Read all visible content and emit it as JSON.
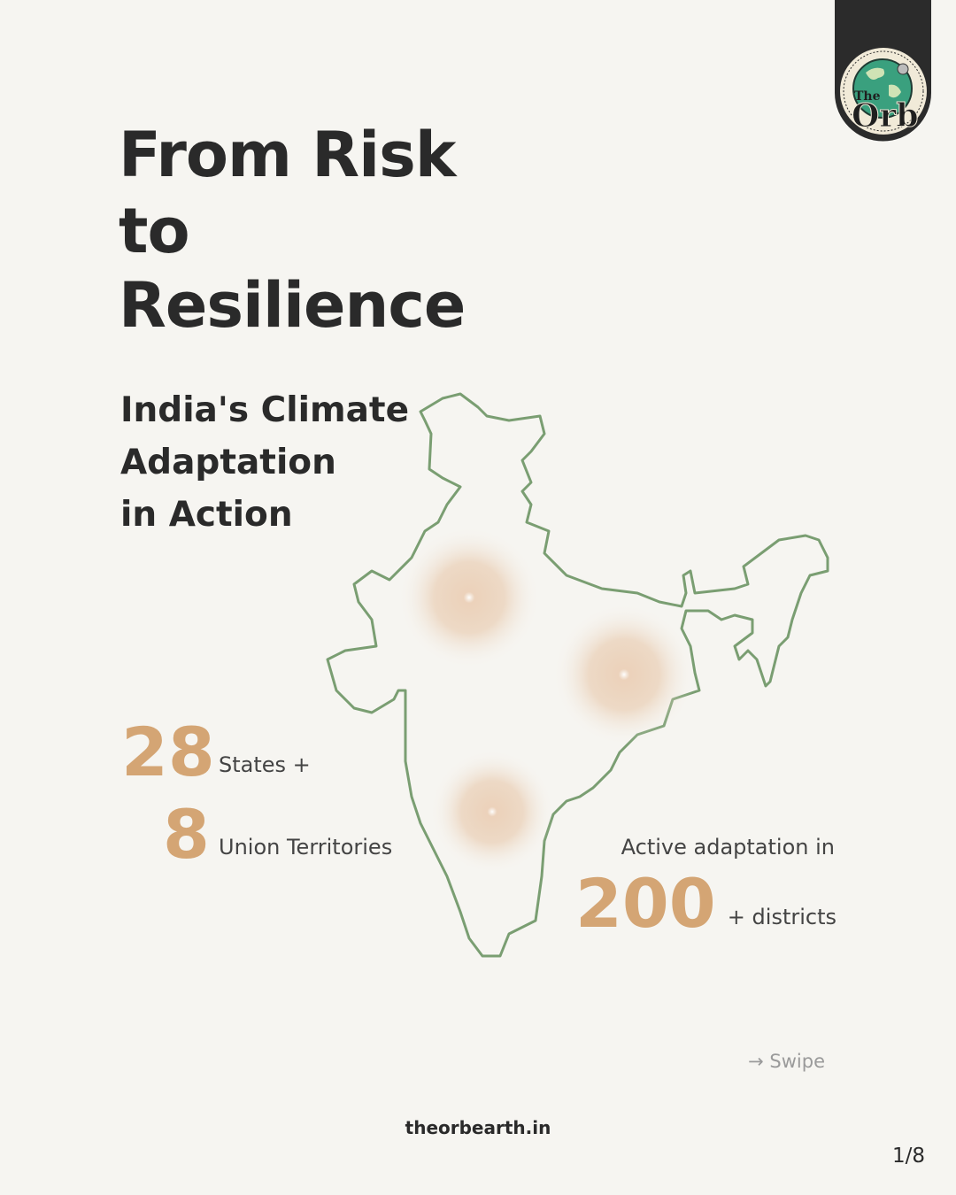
{
  "logo": {
    "small": "The",
    "big": "Orb"
  },
  "title": [
    "From Risk",
    "to",
    "Resilience"
  ],
  "subtitle": [
    "India's Climate",
    "Adaptation",
    "in Action"
  ],
  "stats": {
    "states": {
      "number": "28",
      "label": "States +"
    },
    "territories": {
      "number": "8",
      "label": "Union Territories"
    },
    "districts": {
      "caption": "Active adaptation in",
      "number": "200",
      "label": "+ districts"
    }
  },
  "swipe": "→ Swipe",
  "footer": "theorbearth.in",
  "page": "1/8"
}
